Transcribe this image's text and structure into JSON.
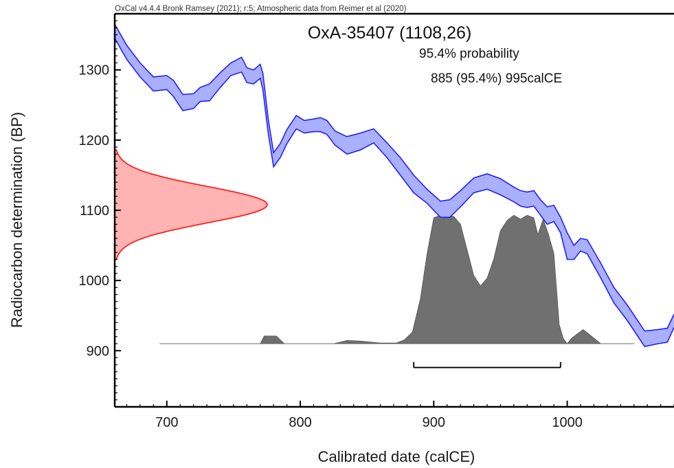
{
  "chart_data": {
    "type": "area",
    "header": "OxCal v4.4.4 Bronk Ramsey (2021); r:5; Atmospheric data from Reimer et al (2020)",
    "title": "OxA-35407 (1108,26)",
    "annotations": [
      "95.4% probability",
      "885 (95.4%) 995calCE"
    ],
    "xlabel": "Calibrated date (calCE)",
    "ylabel": "Radiocarbon determination (BP)",
    "xlim": [
      661,
      1080
    ],
    "ylim": [
      820,
      1380
    ],
    "xticks": [
      700,
      800,
      900,
      1000
    ],
    "yticks": [
      900,
      1000,
      1100,
      1200,
      1300
    ],
    "grid": false,
    "colors": {
      "curve_fill": "#aab0ff",
      "curve_line": "#1f1fff",
      "measurement_fill": "#ffb3b3",
      "measurement_line": "#ff2020",
      "posterior_fill": "#707070",
      "axis": "#000000"
    },
    "calibration_curve": {
      "x": [
        661,
        670,
        680,
        690,
        700,
        705,
        712,
        720,
        725,
        732,
        740,
        748,
        756,
        760,
        765,
        770,
        772,
        776,
        780,
        785,
        790,
        797,
        803,
        810,
        815,
        820,
        826,
        835,
        845,
        855,
        865,
        875,
        885,
        895,
        905,
        912,
        920,
        930,
        940,
        950,
        960,
        965,
        970,
        975,
        980,
        985,
        990,
        995,
        1000,
        1005,
        1010,
        1015,
        1025,
        1035,
        1045,
        1058,
        1068,
        1075,
        1080
      ],
      "upper": [
        1365,
        1335,
        1310,
        1290,
        1292,
        1285,
        1265,
        1266,
        1275,
        1280,
        1296,
        1310,
        1318,
        1303,
        1300,
        1308,
        1295,
        1230,
        1182,
        1195,
        1215,
        1235,
        1228,
        1230,
        1232,
        1228,
        1213,
        1205,
        1210,
        1216,
        1196,
        1175,
        1150,
        1130,
        1113,
        1115,
        1128,
        1146,
        1152,
        1145,
        1133,
        1128,
        1126,
        1128,
        1115,
        1105,
        1107,
        1090,
        1068,
        1050,
        1060,
        1058,
        1025,
        990,
        965,
        928,
        930,
        932,
        952
      ],
      "lower": [
        1345,
        1315,
        1290,
        1270,
        1272,
        1262,
        1242,
        1245,
        1255,
        1256,
        1275,
        1292,
        1297,
        1282,
        1280,
        1288,
        1272,
        1210,
        1162,
        1175,
        1195,
        1216,
        1210,
        1212,
        1212,
        1208,
        1193,
        1180,
        1186,
        1196,
        1175,
        1150,
        1125,
        1110,
        1090,
        1090,
        1105,
        1125,
        1130,
        1122,
        1112,
        1106,
        1104,
        1106,
        1093,
        1080,
        1084,
        1068,
        1030,
        1030,
        1042,
        1038,
        1004,
        968,
        943,
        906,
        910,
        912,
        933
      ]
    },
    "measurement": {
      "mean": 1108,
      "sigma": 26
    },
    "posterior": {
      "x": [
        695,
        770,
        773,
        778,
        782,
        788,
        825,
        835,
        845,
        860,
        872,
        878,
        884,
        890,
        895,
        900,
        905,
        910,
        915,
        920,
        925,
        930,
        935,
        940,
        945,
        950,
        955,
        960,
        965,
        970,
        975,
        978,
        982,
        986,
        990,
        994,
        997,
        1000,
        1003,
        1008,
        1012,
        1018,
        1025,
        1050
      ],
      "density": [
        0,
        0,
        0.06,
        0.06,
        0.06,
        0,
        0,
        0.025,
        0.02,
        0.005,
        0.005,
        0.03,
        0.09,
        0.35,
        0.7,
        0.98,
        1.0,
        1.0,
        0.99,
        0.93,
        0.73,
        0.53,
        0.45,
        0.51,
        0.66,
        0.88,
        0.96,
        1.0,
        0.97,
        1.0,
        0.98,
        0.85,
        0.97,
        0.85,
        0.7,
        0.15,
        0.04,
        0.0,
        0.04,
        0.08,
        0.11,
        0.06,
        0.0,
        0
      ]
    },
    "range_bar": {
      "from": 885,
      "to": 995,
      "probability": "95.4%"
    }
  }
}
